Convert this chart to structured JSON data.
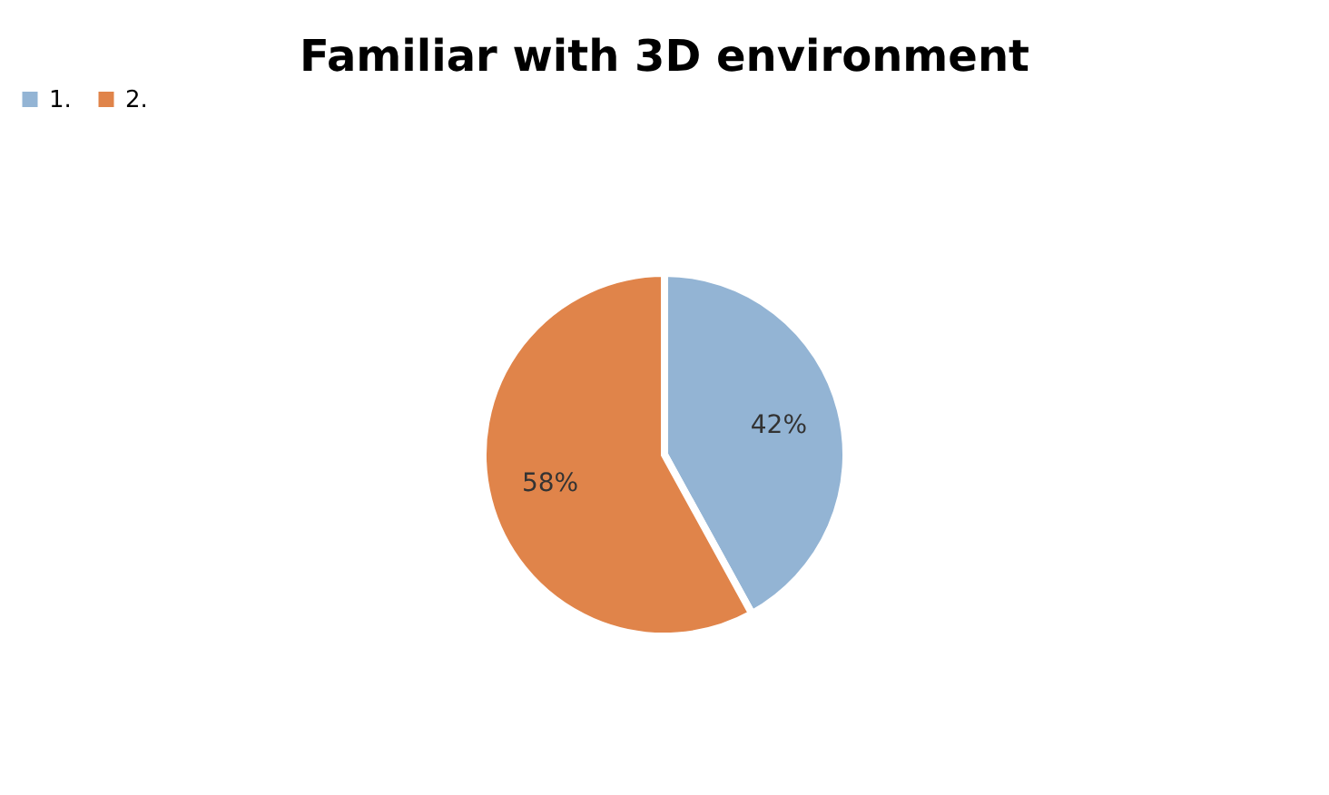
{
  "chart_data": {
    "type": "pie",
    "title": "Familiar with 3D environment",
    "categories": [
      "1.",
      "2."
    ],
    "values": [
      42,
      58
    ],
    "value_labels": [
      "42%",
      "58%"
    ],
    "colors": [
      "#93b4d4",
      "#e0844a"
    ],
    "legend": "top"
  }
}
